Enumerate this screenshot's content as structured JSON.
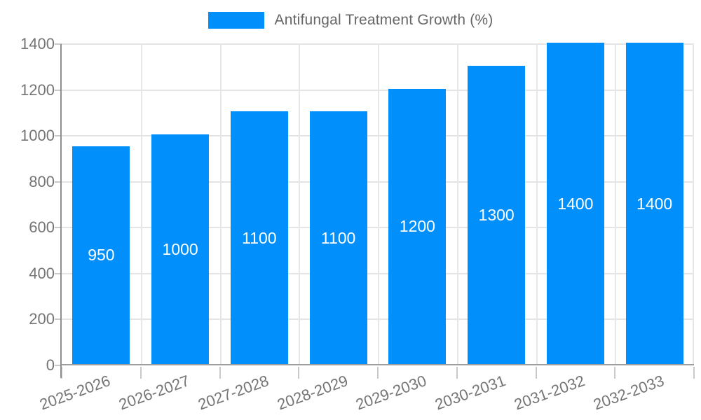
{
  "legend": {
    "label": "Antifungal Treatment Growth (%)"
  },
  "colors": {
    "bar": "#008FFB",
    "bar_label_text": "#FFFFFF",
    "axis_text": "#757575",
    "legend_text": "#666666",
    "gridline": "#E4E4E4",
    "axis_line": "#9E9E9E",
    "tick": "#C9C9C9",
    "background": "#FFFFFF"
  },
  "chart_data": {
    "type": "bar",
    "title": "Antifungal Treatment Growth (%)",
    "legend_position": "top",
    "categories": [
      "2025-2026",
      "2026-2027",
      "2027-2028",
      "2028-2029",
      "2029-2030",
      "2030-2031",
      "2031-2032",
      "2032-2033"
    ],
    "series": [
      {
        "name": "Antifungal Treatment Growth (%)",
        "values": [
          950,
          1000,
          1100,
          1100,
          1200,
          1300,
          1400,
          1400
        ]
      }
    ],
    "bar_value_labels": [
      "950",
      "1000",
      "1100",
      "1100",
      "1200",
      "1300",
      "1400",
      "1400"
    ],
    "xlabel": "",
    "ylabel": "",
    "ylim": [
      0,
      1400
    ],
    "yticks": [
      0,
      200,
      400,
      600,
      800,
      1000,
      1200,
      1400
    ],
    "grid": true,
    "x_label_rotation_deg": -20
  }
}
